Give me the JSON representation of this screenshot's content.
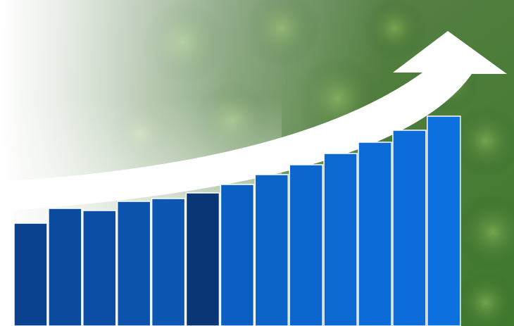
{
  "chart_data": {
    "type": "bar",
    "categories": [
      null,
      null,
      null,
      null,
      null,
      null,
      null,
      null,
      null,
      null,
      null,
      null,
      null
    ],
    "values": [
      146,
      167,
      164,
      177,
      181,
      189,
      201,
      215,
      229,
      245,
      261,
      278,
      298
    ],
    "colors": [
      "#0b428f",
      "#0b4a9d",
      "#0c4ea5",
      "#0c53ad",
      "#0d57b3",
      "#0a3675",
      "#0c5fc2",
      "#0c63c8",
      "#0c66cd",
      "#0c69d2",
      "#0c6bd6",
      "#0c6dda",
      "#0c70de"
    ],
    "ylim": [
      0,
      460
    ]
  }
}
